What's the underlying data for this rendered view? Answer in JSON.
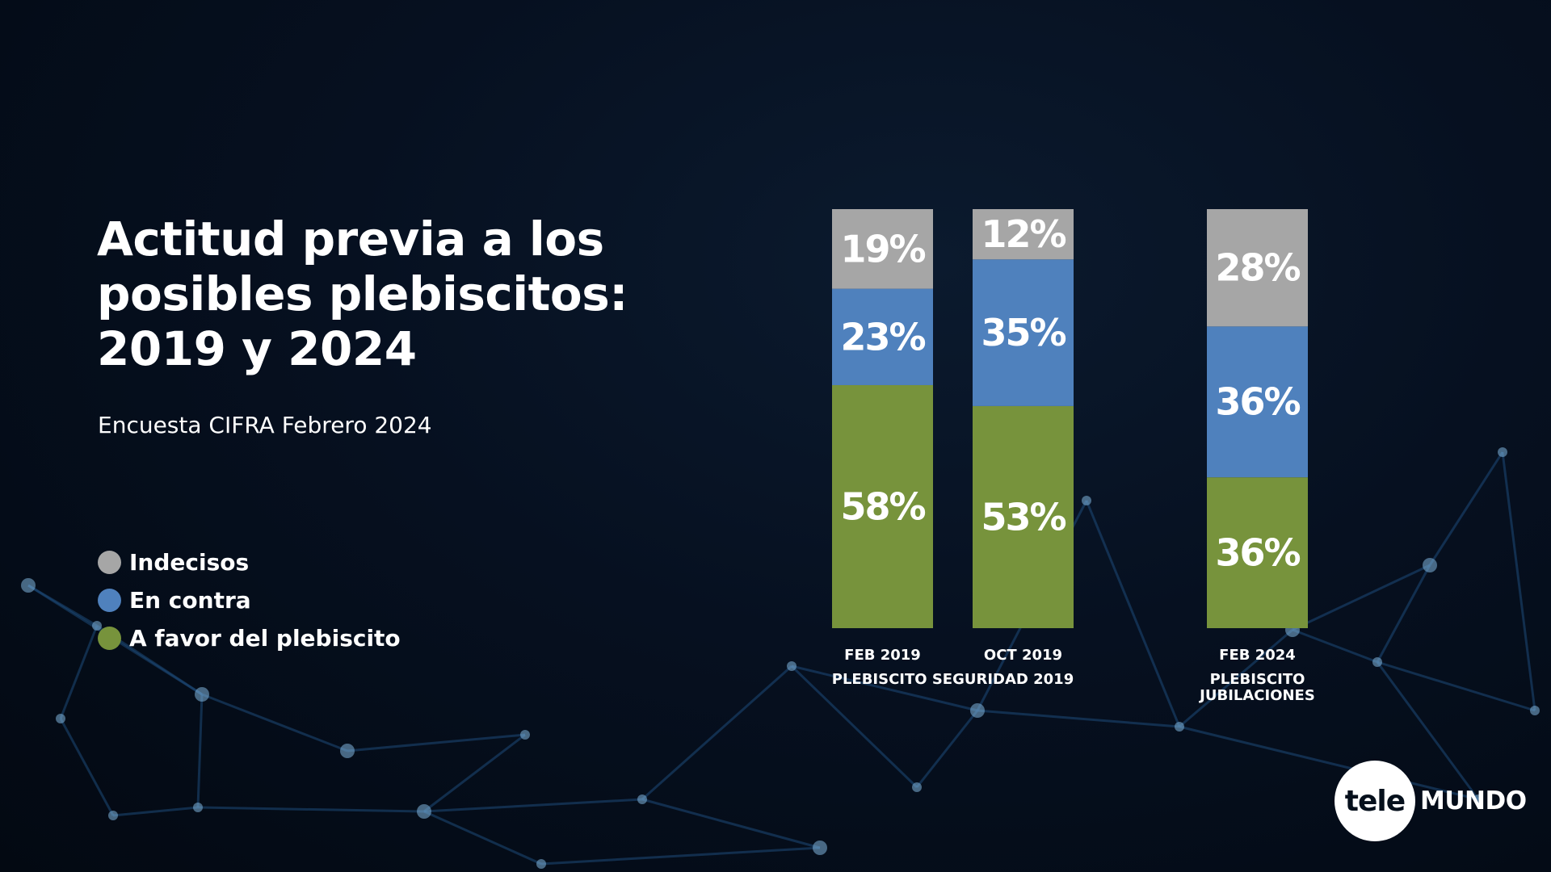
{
  "slide": {
    "title": "Actitud previa a los\nposibles plebiscitos:\n2019 y 2024",
    "subtitle": "Encuesta CIFRA Febrero 2024"
  },
  "legend": [
    {
      "label": "Indecisos",
      "color": "#a6a6a6"
    },
    {
      "label": "En contra",
      "color": "#4f81bd"
    },
    {
      "label": "A favor del plebiscito",
      "color": "#77933c"
    }
  ],
  "logo": {
    "part1": "tele",
    "part2": "MUNDO"
  },
  "chart_data": {
    "type": "bar",
    "stacked": true,
    "orientation": "vertical",
    "title": "Actitud previa a los posibles plebiscitos: 2019 y 2024",
    "subtitle": "Encuesta CIFRA Febrero 2024",
    "categories": [
      "FEB 2019",
      "OCT 2019",
      "FEB 2024"
    ],
    "groups": [
      {
        "label": "PLEBISCITO SEGURIDAD 2019",
        "categories": [
          "FEB 2019",
          "OCT 2019"
        ]
      },
      {
        "label": "PLEBISCITO\nJUBILACIONES",
        "categories": [
          "FEB 2024"
        ]
      }
    ],
    "series": [
      {
        "name": "A favor del plebiscito",
        "color": "#77933c",
        "values": [
          58,
          53,
          36
        ]
      },
      {
        "name": "En contra",
        "color": "#4f81bd",
        "values": [
          23,
          35,
          36
        ]
      },
      {
        "name": "Indecisos",
        "color": "#a6a6a6",
        "values": [
          19,
          12,
          28
        ]
      }
    ],
    "value_suffix": "%",
    "ylim": [
      0,
      100
    ],
    "axes_visible": false,
    "grid": false,
    "legend_position": "left"
  }
}
